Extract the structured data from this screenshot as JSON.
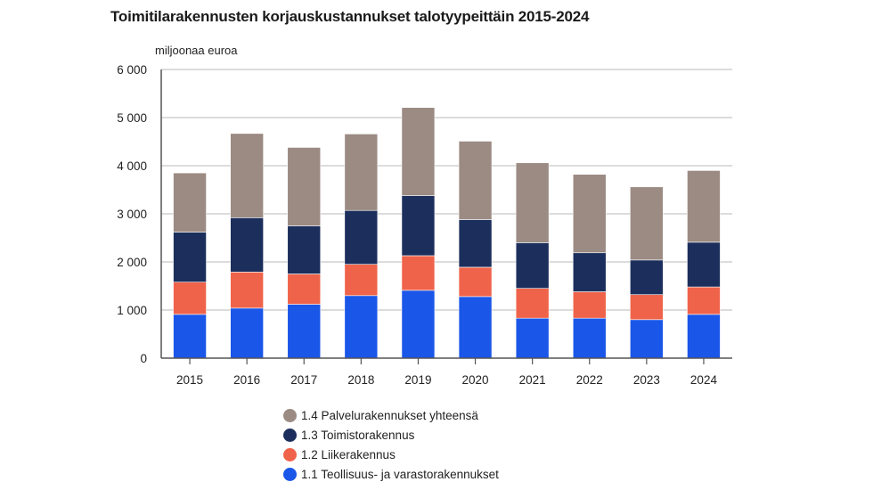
{
  "chart_data": {
    "type": "bar",
    "stacked": true,
    "title": "Toimitilarakennusten korjauskustannukset talotyypeittäin 2015-2024",
    "xlabel": "",
    "ylabel": "miljoonaa euroa",
    "ylim": [
      0,
      6000
    ],
    "yticks": [
      0,
      1000,
      2000,
      3000,
      4000,
      5000,
      6000
    ],
    "ytick_labels": [
      "0",
      "1 000",
      "2 000",
      "3 000",
      "4 000",
      "5 000",
      "6 000"
    ],
    "grid": true,
    "legend_position": "bottom",
    "categories": [
      "2015",
      "2016",
      "2017",
      "2018",
      "2019",
      "2020",
      "2021",
      "2022",
      "2023",
      "2024"
    ],
    "series": [
      {
        "name": "1.1 Teollisuus- ja varastorakennukset",
        "color": "#1a56e8",
        "values": [
          910,
          1040,
          1120,
          1300,
          1410,
          1280,
          830,
          830,
          800,
          910
        ]
      },
      {
        "name": "1.2 Liikerakennus",
        "color": "#ef634a",
        "values": [
          670,
          750,
          630,
          650,
          720,
          610,
          620,
          550,
          520,
          570
        ]
      },
      {
        "name": "1.3 Toimistorakennus",
        "color": "#1c2f5c",
        "values": [
          1040,
          1130,
          1000,
          1120,
          1250,
          990,
          950,
          810,
          720,
          930
        ]
      },
      {
        "name": "1.4 Palvelurakennukset yhteensä",
        "color": "#9b8b83",
        "values": [
          1230,
          1750,
          1630,
          1590,
          1830,
          1630,
          1660,
          1630,
          1520,
          1490
        ]
      }
    ],
    "legend_order": [
      3,
      2,
      1,
      0
    ]
  }
}
